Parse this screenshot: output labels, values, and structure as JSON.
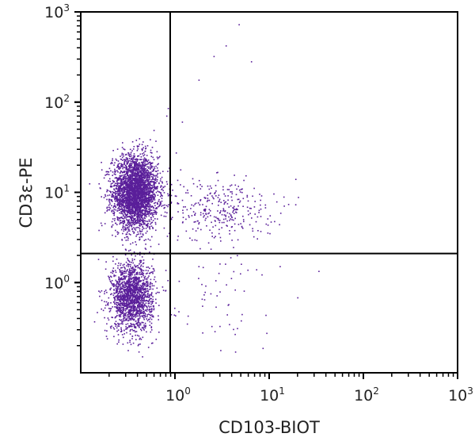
{
  "chart_data": {
    "type": "scatter",
    "title": "",
    "xlabel": "CD103-BIOT",
    "ylabel": "CD3ε-PE",
    "x_scale": "log",
    "y_scale": "log",
    "xlim": [
      0.1,
      1000
    ],
    "ylim": [
      0.1,
      1000
    ],
    "x_ticks": [
      {
        "base": "10",
        "exp": "0",
        "value": 1
      },
      {
        "base": "10",
        "exp": "1",
        "value": 10
      },
      {
        "base": "10",
        "exp": "2",
        "value": 100
      },
      {
        "base": "10",
        "exp": "3",
        "value": 1000
      }
    ],
    "y_ticks": [
      {
        "base": "10",
        "exp": "0",
        "value": 1
      },
      {
        "base": "10",
        "exp": "1",
        "value": 10
      },
      {
        "base": "10",
        "exp": "2",
        "value": 100
      },
      {
        "base": "10",
        "exp": "3",
        "value": 1000
      }
    ],
    "grid": false,
    "quadrant_gates": {
      "x": 0.89,
      "y": 2.1
    },
    "point_color": "#5a1f9a",
    "populations": [
      {
        "center": [
          0.38,
          10
        ],
        "log_sd": [
          0.12,
          0.2
        ],
        "count": 3200
      },
      {
        "center": [
          0.35,
          0.7
        ],
        "log_sd": [
          0.11,
          0.19
        ],
        "count": 1700
      },
      {
        "center": [
          2.9,
          6.5
        ],
        "log_sd": [
          0.3,
          0.18
        ],
        "count": 330
      },
      {
        "center": [
          2.2,
          0.8
        ],
        "log_sd": [
          0.4,
          0.3
        ],
        "count": 70
      }
    ],
    "outliers": [
      [
        4.8,
        720
      ],
      [
        3.5,
        420
      ],
      [
        2.6,
        320
      ],
      [
        6.5,
        280
      ],
      [
        1.8,
        175
      ],
      [
        0.85,
        85
      ],
      [
        0.82,
        70
      ],
      [
        1.2,
        60
      ]
    ]
  }
}
